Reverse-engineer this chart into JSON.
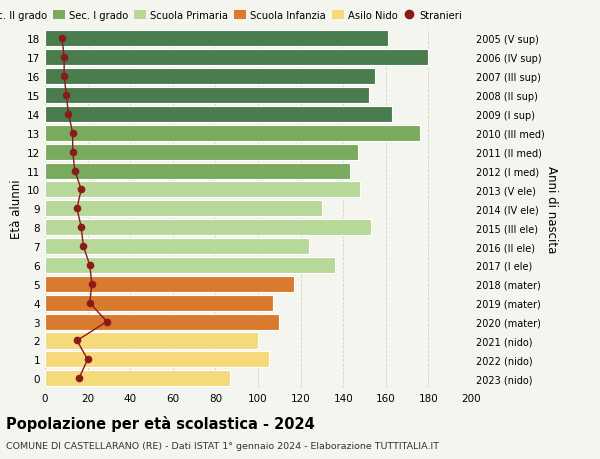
{
  "ages": [
    18,
    17,
    16,
    15,
    14,
    13,
    12,
    11,
    10,
    9,
    8,
    7,
    6,
    5,
    4,
    3,
    2,
    1,
    0
  ],
  "bar_values": [
    161,
    180,
    155,
    152,
    163,
    176,
    147,
    143,
    148,
    130,
    153,
    124,
    136,
    117,
    107,
    110,
    100,
    105,
    87
  ],
  "stranieri": [
    8,
    9,
    9,
    10,
    11,
    13,
    13,
    14,
    17,
    15,
    17,
    18,
    21,
    22,
    21,
    29,
    15,
    20,
    16
  ],
  "right_labels": [
    "2005 (V sup)",
    "2006 (IV sup)",
    "2007 (III sup)",
    "2008 (II sup)",
    "2009 (I sup)",
    "2010 (III med)",
    "2011 (II med)",
    "2012 (I med)",
    "2013 (V ele)",
    "2014 (IV ele)",
    "2015 (III ele)",
    "2016 (II ele)",
    "2017 (I ele)",
    "2018 (mater)",
    "2019 (mater)",
    "2020 (mater)",
    "2021 (nido)",
    "2022 (nido)",
    "2023 (nido)"
  ],
  "bar_colors": [
    "#4a7c4e",
    "#4a7c4e",
    "#4a7c4e",
    "#4a7c4e",
    "#4a7c4e",
    "#7aaa5e",
    "#7aaa5e",
    "#7aaa5e",
    "#b8d89a",
    "#b8d89a",
    "#b8d89a",
    "#b8d89a",
    "#b8d89a",
    "#d97b2e",
    "#d97b2e",
    "#d97b2e",
    "#f5d97a",
    "#f5d97a",
    "#f5d97a"
  ],
  "legend_colors": [
    "#4a7c4e",
    "#7aaa5e",
    "#b8d89a",
    "#d97b2e",
    "#f5d97a"
  ],
  "legend_labels": [
    "Sec. II grado",
    "Sec. I grado",
    "Scuola Primaria",
    "Scuola Infanzia",
    "Asilo Nido",
    "Stranieri"
  ],
  "title": "Popolazione per età scolastica - 2024",
  "subtitle": "COMUNE DI CASTELLARANO (RE) - Dati ISTAT 1° gennaio 2024 - Elaborazione TUTTITALIA.IT",
  "ylabel_left": "Età alunni",
  "ylabel_right": "Anni di nascita",
  "xlim": [
    0,
    200
  ],
  "xticks": [
    0,
    20,
    40,
    60,
    80,
    100,
    120,
    140,
    160,
    180,
    200
  ],
  "stranieri_color": "#8b1a1a",
  "line_color": "#8b1a1a",
  "bg_color": "#f5f5f0"
}
